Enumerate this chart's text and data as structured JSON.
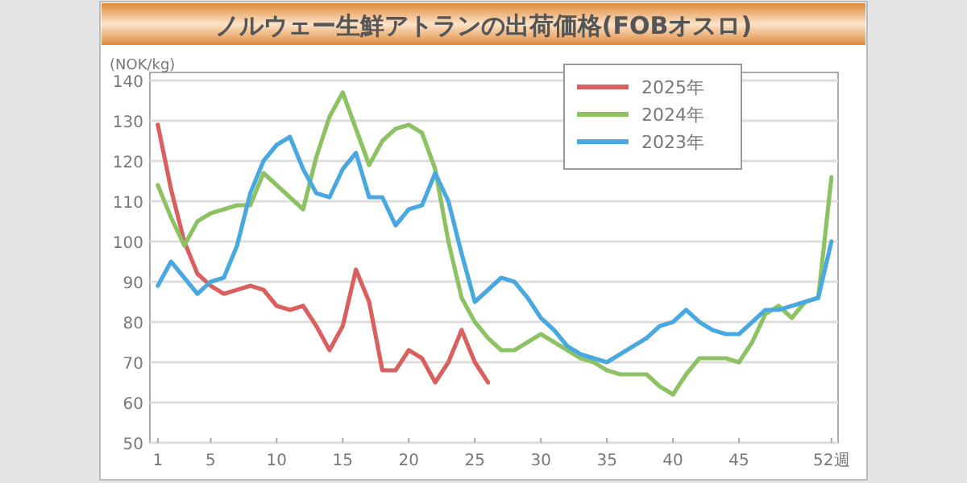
{
  "chart_data": {
    "type": "line",
    "title": "ノルウェー生鮮アトランの出荷価格(FOBオスロ)",
    "ylabel": "(NOK/kg)",
    "x": [
      1,
      2,
      3,
      4,
      5,
      6,
      7,
      8,
      9,
      10,
      11,
      12,
      13,
      14,
      15,
      16,
      17,
      18,
      19,
      20,
      21,
      22,
      23,
      24,
      25,
      26,
      27,
      28,
      29,
      30,
      31,
      32,
      33,
      34,
      35,
      36,
      37,
      38,
      39,
      40,
      41,
      42,
      43,
      44,
      45,
      46,
      47,
      48,
      49,
      50,
      51,
      52
    ],
    "xlim": [
      0.4,
      52.5
    ],
    "xticks": [
      1,
      5,
      10,
      15,
      20,
      25,
      30,
      35,
      40,
      45,
      {
        "value": 52,
        "label": "52週"
      }
    ],
    "ylim": [
      50,
      140
    ],
    "yticks": [
      50,
      60,
      70,
      80,
      90,
      100,
      110,
      120,
      130,
      140
    ],
    "grid": "y",
    "legend": "top right",
    "marker": "none",
    "line_style": "solid",
    "series": [
      {
        "name": "2025年",
        "color": "#d9605f",
        "values": [
          129,
          113,
          100,
          92,
          89,
          87,
          88,
          89,
          88,
          84,
          83,
          84,
          79,
          73,
          79,
          93,
          85,
          68,
          68,
          73,
          71,
          65,
          70,
          78,
          70,
          65,
          null,
          null,
          null,
          null,
          null,
          null,
          null,
          null,
          null,
          null,
          null,
          null,
          null,
          null,
          null,
          null,
          null,
          null,
          null,
          null,
          null,
          null,
          null,
          null,
          null,
          null
        ]
      },
      {
        "name": "2024年",
        "color": "#8dc263",
        "values": [
          114,
          106,
          99,
          105,
          107,
          108,
          109,
          109,
          117,
          114,
          111,
          108,
          121,
          131,
          137,
          128,
          119,
          125,
          128,
          129,
          127,
          118,
          100,
          86,
          80,
          76,
          73,
          73,
          75,
          77,
          75,
          73,
          71,
          70,
          68,
          67,
          67,
          67,
          64,
          62,
          67,
          71,
          71,
          71,
          70,
          75,
          82,
          84,
          81,
          85,
          86,
          116
        ]
      },
      {
        "name": "2023年",
        "color": "#4aa8e0",
        "values": [
          89,
          95,
          91,
          87,
          90,
          91,
          99,
          112,
          120,
          124,
          126,
          118,
          112,
          111,
          118,
          122,
          111,
          111,
          104,
          108,
          109,
          117,
          110,
          97,
          85,
          88,
          91,
          90,
          86,
          81,
          78,
          74,
          72,
          71,
          70,
          72,
          74,
          76,
          79,
          80,
          83,
          80,
          78,
          77,
          77,
          80,
          83,
          83,
          84,
          85,
          86,
          100
        ]
      }
    ]
  }
}
